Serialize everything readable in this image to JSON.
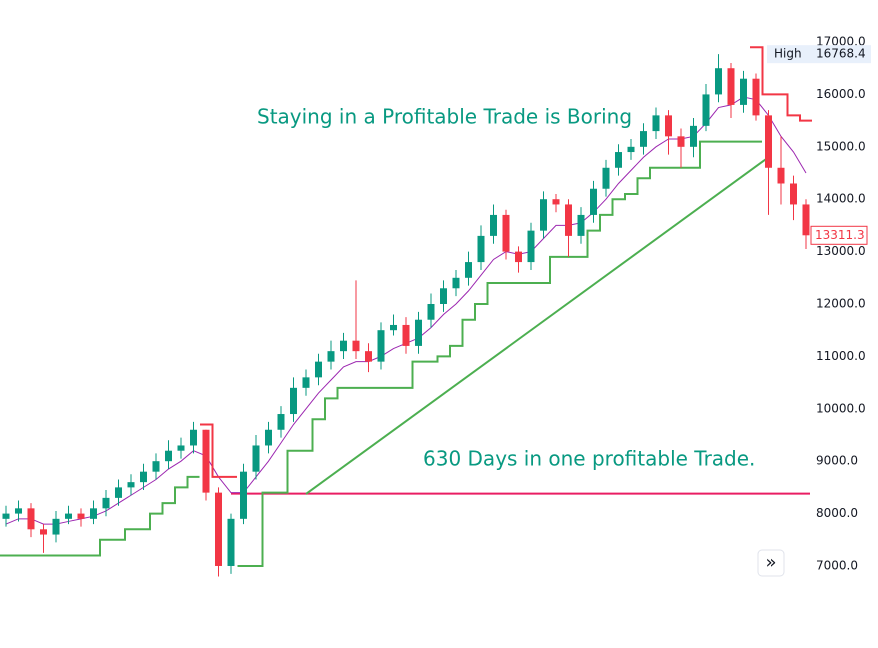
{
  "chart_data": {
    "type": "candlestick",
    "annotations": [
      "Staying in a Profitable Trade is Boring",
      "630 Days in one profitable Trade."
    ],
    "high_label": "High",
    "up_color": "#089981",
    "down_color": "#f23645",
    "open": [
      7900,
      8000,
      8100,
      7700,
      7600,
      7900,
      8000,
      7900,
      8100,
      8300,
      8500,
      8600,
      8800,
      9000,
      9200,
      9300,
      9600,
      8400,
      7000,
      7900,
      8800,
      9300,
      9600,
      9900,
      10400,
      10600,
      10900,
      11100,
      11300,
      11100,
      10900,
      11500,
      11600,
      11200,
      11700,
      12000,
      12300,
      12500,
      12800,
      13300,
      13700,
      13000,
      12800,
      13400,
      14000,
      13900,
      13300,
      13700,
      14200,
      14600,
      14900,
      15000,
      15300,
      15600,
      15200,
      15000,
      15400,
      16000,
      16500,
      15800,
      16300,
      15600,
      14600,
      14300,
      13900
    ],
    "high": [
      8150,
      8250,
      8200,
      7800,
      8050,
      8150,
      8100,
      8250,
      8450,
      8650,
      8750,
      8950,
      9150,
      9400,
      9450,
      9750,
      9600,
      8500,
      8000,
      8950,
      9500,
      9750,
      10050,
      10600,
      10750,
      11050,
      11300,
      11450,
      12450,
      11250,
      11650,
      11800,
      11750,
      11850,
      12200,
      12450,
      12650,
      13000,
      13500,
      13900,
      13800,
      13100,
      13550,
      14150,
      14100,
      14000,
      13850,
      14350,
      14750,
      15050,
      15150,
      15450,
      15750,
      15700,
      15350,
      15550,
      16200,
      16768.4,
      16600,
      16450,
      16400,
      15700,
      15200,
      14450,
      14000
    ],
    "low": [
      7750,
      7850,
      7550,
      7250,
      7450,
      7800,
      7750,
      7800,
      7950,
      8150,
      8350,
      8450,
      8650,
      8850,
      9050,
      9150,
      8250,
      6800,
      6850,
      7800,
      8650,
      9150,
      9450,
      9750,
      10250,
      10450,
      10750,
      10950,
      10950,
      10700,
      10750,
      11400,
      11050,
      11050,
      11550,
      11850,
      12150,
      12350,
      12650,
      13150,
      12850,
      12600,
      12650,
      13250,
      13750,
      12900,
      13150,
      13550,
      14050,
      14450,
      14750,
      14850,
      15150,
      14850,
      14600,
      14800,
      15300,
      15850,
      15550,
      15650,
      15500,
      13700,
      13900,
      13600,
      13050
    ],
    "close": [
      8000,
      8100,
      7700,
      7600,
      7900,
      8000,
      7900,
      8100,
      8300,
      8500,
      8600,
      8800,
      9000,
      9200,
      9300,
      9600,
      8400,
      7000,
      7900,
      8800,
      9300,
      9600,
      9900,
      10400,
      10600,
      10900,
      11100,
      11300,
      11100,
      10900,
      11500,
      11600,
      11200,
      11700,
      12000,
      12300,
      12500,
      12800,
      13300,
      13700,
      13000,
      12800,
      13400,
      14000,
      13900,
      13300,
      13700,
      14200,
      14600,
      14900,
      15000,
      15300,
      15600,
      15200,
      15000,
      15400,
      16000,
      16500,
      15800,
      16300,
      15600,
      14600,
      14300,
      13900,
      13311.3
    ],
    "series": [
      {
        "color": "#9c27b0",
        "values": [
          7800,
          7900,
          7900,
          7800,
          7800,
          7850,
          7900,
          7950,
          8050,
          8200,
          8350,
          8500,
          8650,
          8850,
          9000,
          9200,
          9100,
          8700,
          8400,
          8400,
          8700,
          9000,
          9350,
          9700,
          10000,
          10300,
          10550,
          10800,
          10900,
          10900,
          11000,
          11150,
          11250,
          11350,
          11550,
          11800,
          12000,
          12250,
          12550,
          12850,
          13000,
          12950,
          13000,
          13250,
          13500,
          13500,
          13550,
          13750,
          14000,
          14300,
          14550,
          14800,
          15000,
          15150,
          15150,
          15200,
          15450,
          15750,
          15800,
          15950,
          15900,
          15600,
          15200,
          14900,
          14500
        ]
      },
      {
        "color": "#4caf50",
        "values": [
          7200,
          7200,
          7200,
          7200,
          7200,
          7200,
          7200,
          7200,
          7500,
          7500,
          7700,
          7700,
          8000,
          8200,
          8500,
          8700,
          null,
          null,
          null,
          7000,
          7000,
          8400,
          8400,
          9200,
          9200,
          9800,
          10200,
          10400,
          10400,
          10400,
          10400,
          10400,
          10400,
          10900,
          10900,
          11000,
          11200,
          11700,
          12000,
          12400,
          12400,
          12400,
          12400,
          12400,
          12900,
          12900,
          12900,
          13400,
          13700,
          14000,
          14100,
          14400,
          14600,
          14600,
          14600,
          14600,
          15100,
          15100,
          15100,
          15100,
          15100,
          null,
          null,
          null,
          null
        ]
      },
      {
        "color": "#f23645",
        "values": [
          null,
          null,
          null,
          null,
          null,
          null,
          null,
          null,
          null,
          null,
          null,
          null,
          null,
          null,
          null,
          null,
          9700,
          8700,
          8700,
          null,
          null,
          null,
          null,
          null,
          null,
          null,
          null,
          null,
          null,
          null,
          null,
          null,
          null,
          null,
          null,
          null,
          null,
          null,
          null,
          null,
          null,
          null,
          null,
          null,
          null,
          null,
          null,
          null,
          null,
          null,
          null,
          null,
          null,
          null,
          null,
          null,
          null,
          null,
          null,
          null,
          16900,
          16000,
          16000,
          15600,
          15500
        ]
      }
    ],
    "trendline": {
      "x": [
        24,
        61
      ],
      "y": [
        8374,
        14800
      ],
      "color": "#4caf50"
    },
    "hline": {
      "x": [
        18,
        64
      ],
      "value": 8380,
      "color": "#e91e63"
    },
    "ylim": [
      6637,
      17802
    ],
    "yticks": [
      {
        "value": 7000,
        "label": "7000.0"
      },
      {
        "value": 8000,
        "label": "8000.0"
      },
      {
        "value": 9000,
        "label": "9000.0"
      },
      {
        "value": 10000,
        "label": "10000.0"
      },
      {
        "value": 11000,
        "label": "11000.0"
      },
      {
        "value": 12000,
        "label": "12000.0"
      },
      {
        "value": 13000,
        "label": "13000.0"
      },
      {
        "value": 14000,
        "label": "14000.0"
      },
      {
        "value": 15000,
        "label": "15000.0"
      },
      {
        "value": 16000,
        "label": "16000.0"
      },
      {
        "value": 17000,
        "label": "17000.0"
      }
    ]
  },
  "ui": {
    "scroll_button": "»"
  }
}
